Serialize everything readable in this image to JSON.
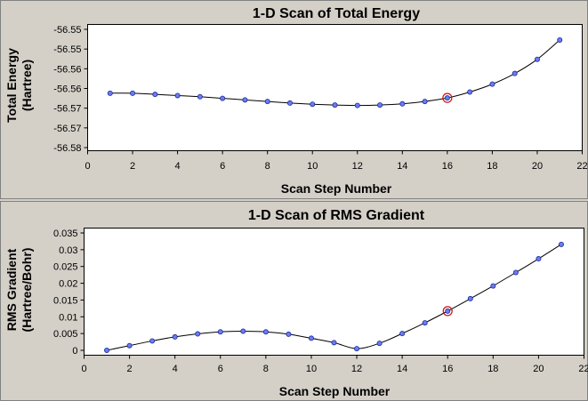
{
  "chart_data": [
    {
      "type": "line",
      "title": "1-D Scan of Total Energy",
      "xlabel": "Scan Step Number",
      "ylabel_line1": "Total Energy",
      "ylabel_line2": "(Hartree)",
      "xlim": [
        0,
        22
      ],
      "ylim": [
        -56.58,
        -56.55
      ],
      "xticks": [
        0,
        2,
        4,
        6,
        8,
        10,
        12,
        14,
        16,
        18,
        20,
        22
      ],
      "yticks": [
        -56.58,
        -56.575,
        -56.57,
        -56.565,
        -56.56,
        -56.555,
        -56.55
      ],
      "ytick_labels": [
        "-56.58",
        "-56.57",
        "-56.57",
        "-56.56",
        "-56.56",
        "-56.55",
        "-56.55"
      ],
      "highlight_x": 16,
      "series": [
        {
          "x": [
            1,
            2,
            3,
            4,
            5,
            6,
            7,
            8,
            9,
            10,
            11,
            12,
            13,
            14,
            15,
            16,
            17,
            18,
            19,
            20,
            21
          ],
          "values": [
            -56.5662,
            -56.5662,
            -56.5665,
            -56.5668,
            -56.5671,
            -56.5675,
            -56.5679,
            -56.5683,
            -56.5687,
            -56.569,
            -56.5692,
            -56.5693,
            -56.5692,
            -56.5689,
            -56.5683,
            -56.5674,
            -56.5659,
            -56.5639,
            -56.5612,
            -56.5576,
            -56.5527
          ]
        }
      ]
    },
    {
      "type": "line",
      "title": "1-D Scan of RMS Gradient",
      "xlabel": "Scan Step Number",
      "ylabel_line1": "RMS Gradient",
      "ylabel_line2": "(Hartree/Bohr)",
      "xlim": [
        0,
        22
      ],
      "ylim": [
        0,
        0.035
      ],
      "xticks": [
        0,
        2,
        4,
        6,
        8,
        10,
        12,
        14,
        16,
        18,
        20,
        22
      ],
      "yticks": [
        0,
        0.005,
        0.01,
        0.015,
        0.02,
        0.025,
        0.03,
        0.035
      ],
      "ytick_labels": [
        "0",
        "0.005",
        "0.01",
        "0.015",
        "0.02",
        "0.025",
        "0.03",
        "0.035"
      ],
      "highlight_x": 16,
      "series": [
        {
          "x": [
            1,
            2,
            3,
            4,
            5,
            6,
            7,
            8,
            9,
            10,
            11,
            12,
            13,
            14,
            15,
            16,
            17,
            18,
            19,
            20,
            21
          ],
          "values": [
            0.0,
            0.0014,
            0.0028,
            0.004,
            0.0049,
            0.0055,
            0.0057,
            0.0055,
            0.0048,
            0.0036,
            0.0023,
            0.0005,
            0.0021,
            0.005,
            0.0082,
            0.0117,
            0.0154,
            0.0192,
            0.0232,
            0.0273,
            0.0316
          ]
        }
      ]
    }
  ]
}
